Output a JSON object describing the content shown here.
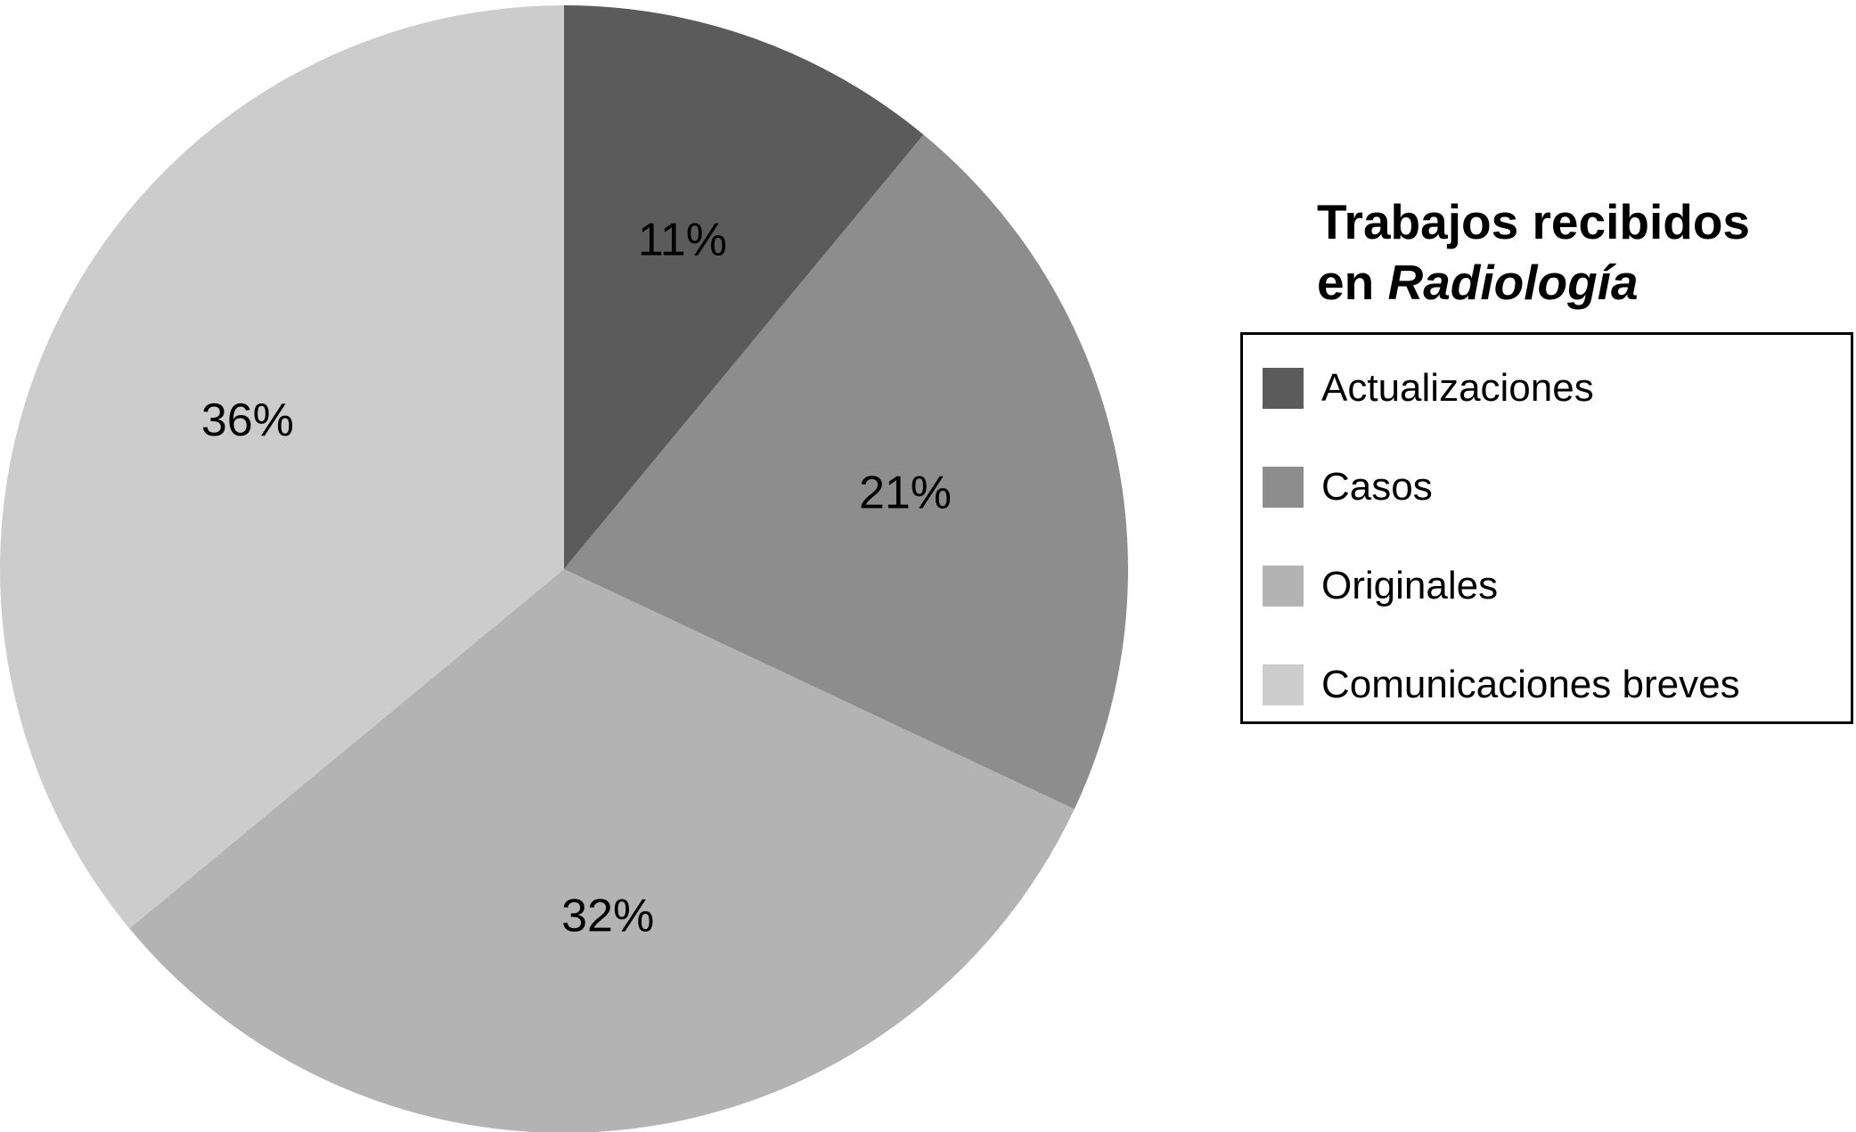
{
  "chart_data": {
    "type": "pie",
    "title": "Trabajos recibidos en Radiología",
    "title_parts": {
      "line1": "Trabajos recibidos",
      "line2_plain": "en ",
      "line2_italic": "Radiología"
    },
    "categories": [
      "Actualizaciones",
      "Casos",
      "Originales",
      "Comunicaciones breves"
    ],
    "values": [
      11,
      21,
      32,
      36
    ],
    "value_labels": [
      "11%",
      "21%",
      "32%",
      "36%"
    ],
    "colors": [
      "#5b5b5b",
      "#8d8d8d",
      "#b3b3b3",
      "#cccccc"
    ],
    "start_angle": "12 o'clock",
    "direction": "clockwise",
    "legend": {
      "position": "right",
      "border": true
    }
  }
}
